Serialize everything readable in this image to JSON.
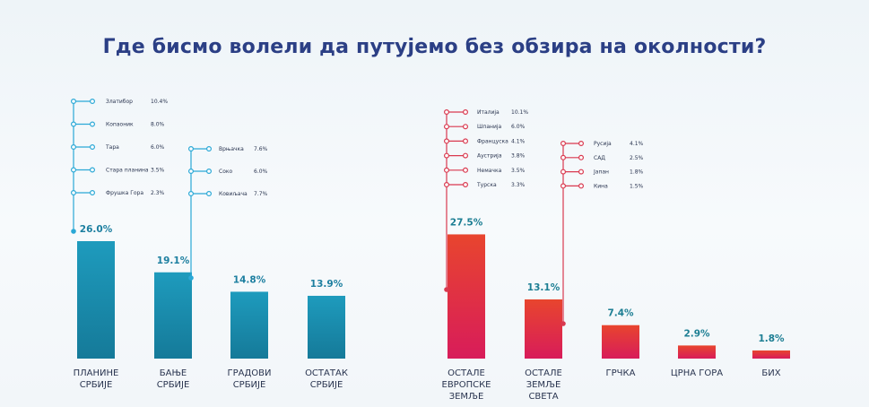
{
  "chart_data": {
    "type": "bar",
    "title": "Где бисмо волели да путујемо без обзира на околности?",
    "xlabel": "",
    "ylabel": "",
    "ylim": [
      0,
      30
    ],
    "unit": "%",
    "colors": {
      "serbia": "#1b8fb0",
      "abroad_top": "#e8452e",
      "abroad_bottom": "#d81c5a",
      "title": "#2b3f85",
      "serbia_value": "#1d7fa0",
      "abroad_value": "#1c7e93"
    },
    "categories": [
      {
        "label": [
          "ПЛАНИНЕ",
          "СРБИЈЕ"
        ],
        "value": 26.0,
        "value_label": "26.0%",
        "group": "serbia"
      },
      {
        "label": [
          "БАЊЕ",
          "СРБИЈЕ"
        ],
        "value": 19.1,
        "value_label": "19.1%",
        "group": "serbia"
      },
      {
        "label": [
          "ГРАДОВИ",
          "СРБИЈЕ"
        ],
        "value": 14.8,
        "value_label": "14.8%",
        "group": "serbia"
      },
      {
        "label": [
          "ОСТАТАК",
          "СРБИЈЕ"
        ],
        "value": 13.9,
        "value_label": "13.9%",
        "group": "serbia"
      },
      {
        "label": [
          "ОСТАЛЕ",
          "ЕВРОПСКЕ",
          "ЗЕМЉЕ"
        ],
        "value": 27.5,
        "value_label": "27.5%",
        "group": "abroad"
      },
      {
        "label": [
          "ОСТАЛЕ",
          "ЗЕМЉЕ",
          "СВЕТА"
        ],
        "value": 13.1,
        "value_label": "13.1%",
        "group": "abroad"
      },
      {
        "label": [
          "ГРЧКА"
        ],
        "value": 7.4,
        "value_label": "7.4%",
        "group": "abroad"
      },
      {
        "label": [
          "ЦРНА ГОРА"
        ],
        "value": 2.9,
        "value_label": "2.9%",
        "group": "abroad"
      },
      {
        "label": [
          "БИХ"
        ],
        "value": 1.8,
        "value_label": "1.8%",
        "group": "abroad"
      }
    ],
    "breakdowns": [
      {
        "bar": 0,
        "items": [
          {
            "name": "Златибор",
            "value": "10.4%"
          },
          {
            "name": "Копаоник",
            "value": "8.0%"
          },
          {
            "name": "Тара",
            "value": "6.0%"
          },
          {
            "name": "Стара планина",
            "value": "3.5%"
          },
          {
            "name": "Фрушка Гора",
            "value": "2.3%"
          }
        ]
      },
      {
        "bar": 1,
        "items": [
          {
            "name": "Врњачка",
            "value": "7.6%"
          },
          {
            "name": "Соко",
            "value": "6.0%"
          },
          {
            "name": "Ковиљача",
            "value": "7.7%"
          }
        ]
      },
      {
        "bar": 4,
        "items": [
          {
            "name": "Италија",
            "value": "10.1%"
          },
          {
            "name": "Шпанија",
            "value": "6.0%"
          },
          {
            "name": "Француска",
            "value": "4.1%"
          },
          {
            "name": "Аустрија",
            "value": "3.8%"
          },
          {
            "name": "Немачка",
            "value": "3.5%"
          },
          {
            "name": "Турска",
            "value": "3.3%"
          }
        ]
      },
      {
        "bar": 5,
        "items": [
          {
            "name": "Русија",
            "value": "4.1%"
          },
          {
            "name": "САД",
            "value": "2.5%"
          },
          {
            "name": "Јапан",
            "value": "1.8%"
          },
          {
            "name": "Кина",
            "value": "1.5%"
          }
        ]
      }
    ]
  }
}
